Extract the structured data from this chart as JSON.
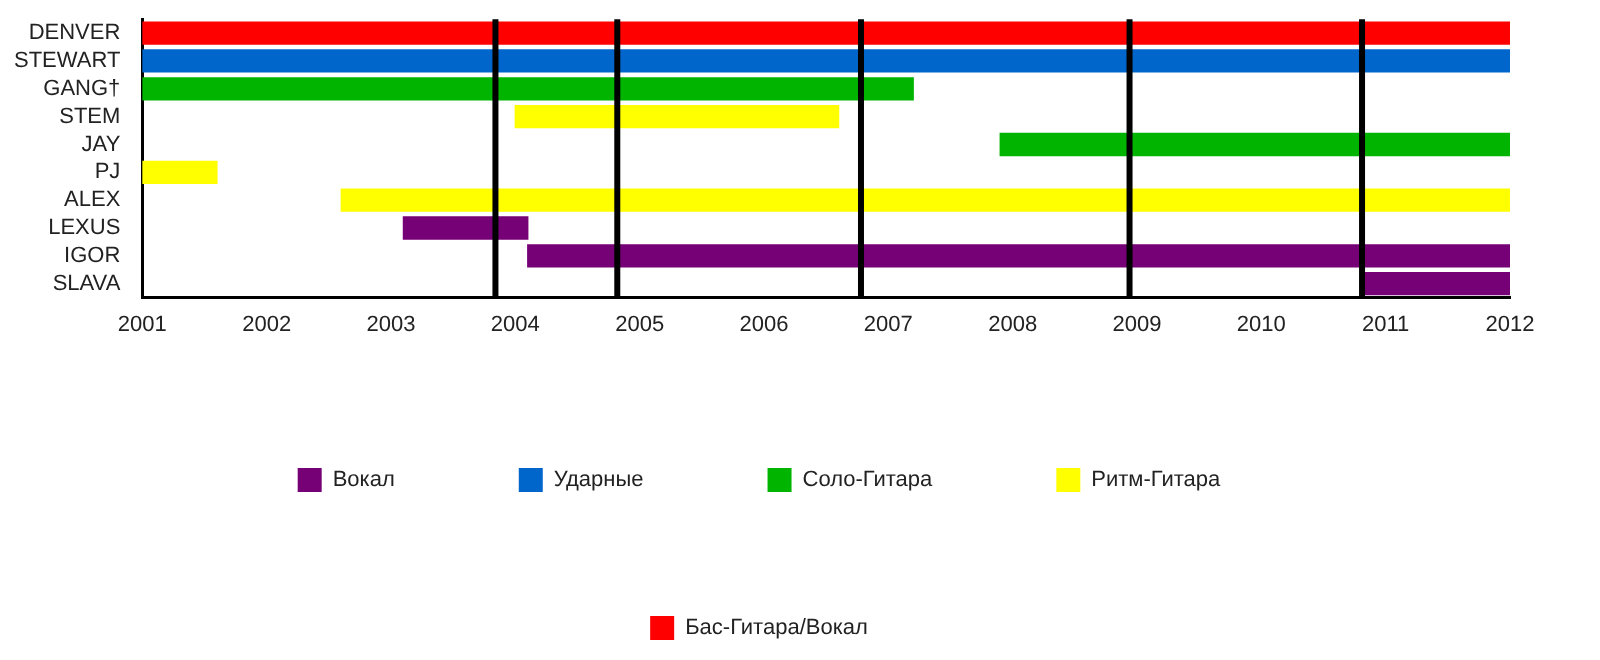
{
  "chart_data": {
    "type": "bar",
    "orientation": "horizontal",
    "categories": [
      "DENVER",
      "STEWART",
      "GANG†",
      "STEM",
      "JAY",
      "PJ",
      "ALEX",
      "LEXUS",
      "IGOR",
      "SLAVA"
    ],
    "series": [
      {
        "name": "Вокал",
        "color": "#760076",
        "base": [
          null,
          null,
          null,
          null,
          null,
          null,
          null,
          2003.1,
          2004.1,
          2010.8
        ],
        "values": [
          null,
          null,
          null,
          null,
          null,
          null,
          null,
          1.0,
          7.9,
          1.2
        ]
      },
      {
        "name": "Ударные",
        "color": "#0066cc",
        "base": [
          null,
          2001,
          null,
          null,
          null,
          null,
          null,
          null,
          null,
          null
        ],
        "values": [
          null,
          11,
          null,
          null,
          null,
          null,
          null,
          null,
          null,
          null
        ]
      },
      {
        "name": "Соло-Гитара",
        "color": "#00b400",
        "base": [
          null,
          null,
          2001,
          null,
          2007.9,
          null,
          null,
          null,
          null,
          null
        ],
        "values": [
          null,
          null,
          6.2,
          null,
          4.1,
          null,
          null,
          null,
          null,
          null
        ]
      },
      {
        "name": "Ритм-Гитара",
        "color": "#ffff00",
        "base": [
          null,
          null,
          null,
          2004.0,
          null,
          2001,
          2002.6,
          null,
          null,
          null
        ],
        "values": [
          null,
          null,
          null,
          2.6,
          null,
          0.6,
          9.4,
          null,
          null,
          null
        ]
      },
      {
        "name": "Бас-Гитара/Вокал",
        "color": "#ff0000",
        "base": [
          2001,
          null,
          null,
          null,
          null,
          null,
          null,
          null,
          null,
          null
        ],
        "values": [
          11,
          null,
          null,
          null,
          null,
          null,
          null,
          null,
          null,
          null
        ]
      }
    ],
    "xlim": [
      2001,
      2012
    ],
    "xticks": [
      2001,
      2002,
      2003,
      2004,
      2005,
      2006,
      2007,
      2008,
      2009,
      2010,
      2011,
      2012
    ],
    "grid": false,
    "legend": "bottom",
    "ref_lines": [
      {
        "axis": "x",
        "value": 2003.84,
        "color": "#000000"
      },
      {
        "axis": "x",
        "value": 2004.82,
        "color": "#000000"
      },
      {
        "axis": "x",
        "value": 2006.78,
        "color": "#000000"
      },
      {
        "axis": "x",
        "value": 2008.94,
        "color": "#000000"
      },
      {
        "axis": "x",
        "value": 2010.81,
        "color": "#000000"
      }
    ]
  }
}
